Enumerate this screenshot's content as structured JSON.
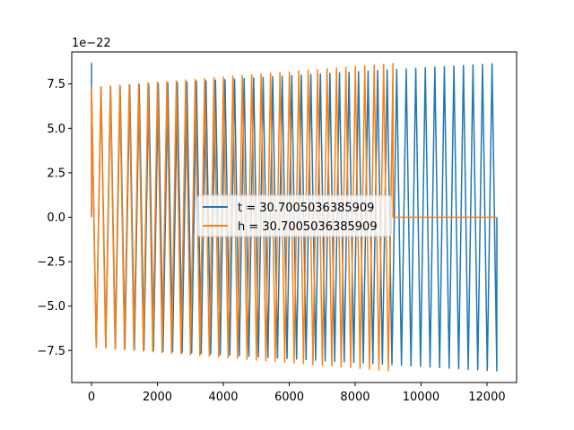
{
  "chart_data": {
    "type": "line",
    "offset_text": "1e−22",
    "xlim": [
      -600,
      12900
    ],
    "ylim": [
      -9.3,
      9.3
    ],
    "x_ticks": [
      0,
      2000,
      4000,
      6000,
      8000,
      10000,
      12000
    ],
    "x_tick_labels": [
      "0",
      "2000",
      "4000",
      "6000",
      "8000",
      "10000",
      "12000"
    ],
    "y_ticks": [
      -7.5,
      -5.0,
      -2.5,
      0.0,
      2.5,
      5.0,
      7.5
    ],
    "y_tick_labels": [
      "−7.5",
      "−5.0",
      "−2.5",
      "0.0",
      "2.5",
      "5.0",
      "7.5"
    ],
    "grid": false,
    "legend_position": "center",
    "series": [
      {
        "name": "t = 30.7005036385909",
        "color": "#1f77b4",
        "x_start": 0,
        "x_end": 12300,
        "cycles": 85,
        "start_amplitude": 7.3,
        "end_amplitude": 8.65,
        "initial_value": 8.65
      },
      {
        "name": "h = 30.7005036385909",
        "color": "#ff7f0e",
        "x_start": 0,
        "x_end": 9150,
        "baseline_until": 12300,
        "cycles": 64,
        "start_amplitude": 7.3,
        "end_amplitude": 8.65,
        "initial_value": 0
      }
    ]
  }
}
